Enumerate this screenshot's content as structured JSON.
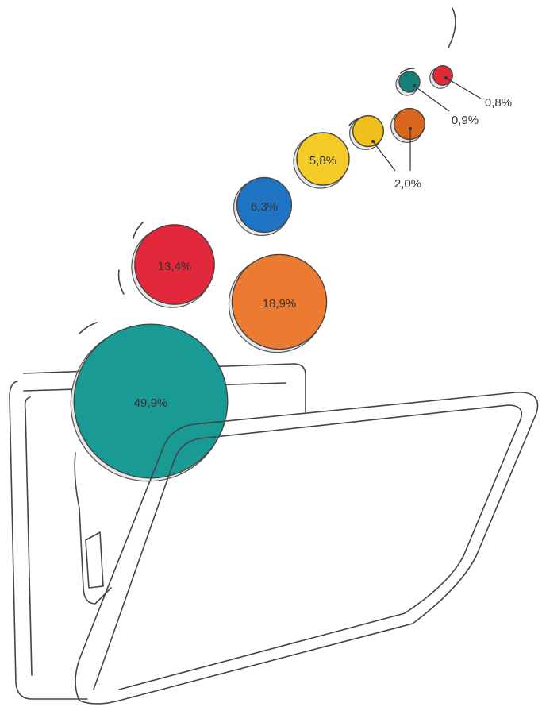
{
  "chart_data": {
    "type": "coins",
    "values": [
      49.9,
      18.9,
      13.4,
      6.3,
      5.8,
      2.0,
      2.0,
      0.9,
      0.8
    ],
    "value_labels": [
      "49,9%",
      "18,9%",
      "13,4%",
      "6,3%",
      "5,8%",
      "2,0%",
      null,
      "0,9%",
      "0,8%"
    ],
    "colors": [
      "#1a9a94",
      "#ec7a30",
      "#e2283b",
      "#1f74c4",
      "#f5cc27",
      "#f0c01e",
      "#d9661c",
      "#157f7a",
      "#e02a3a"
    ]
  }
}
